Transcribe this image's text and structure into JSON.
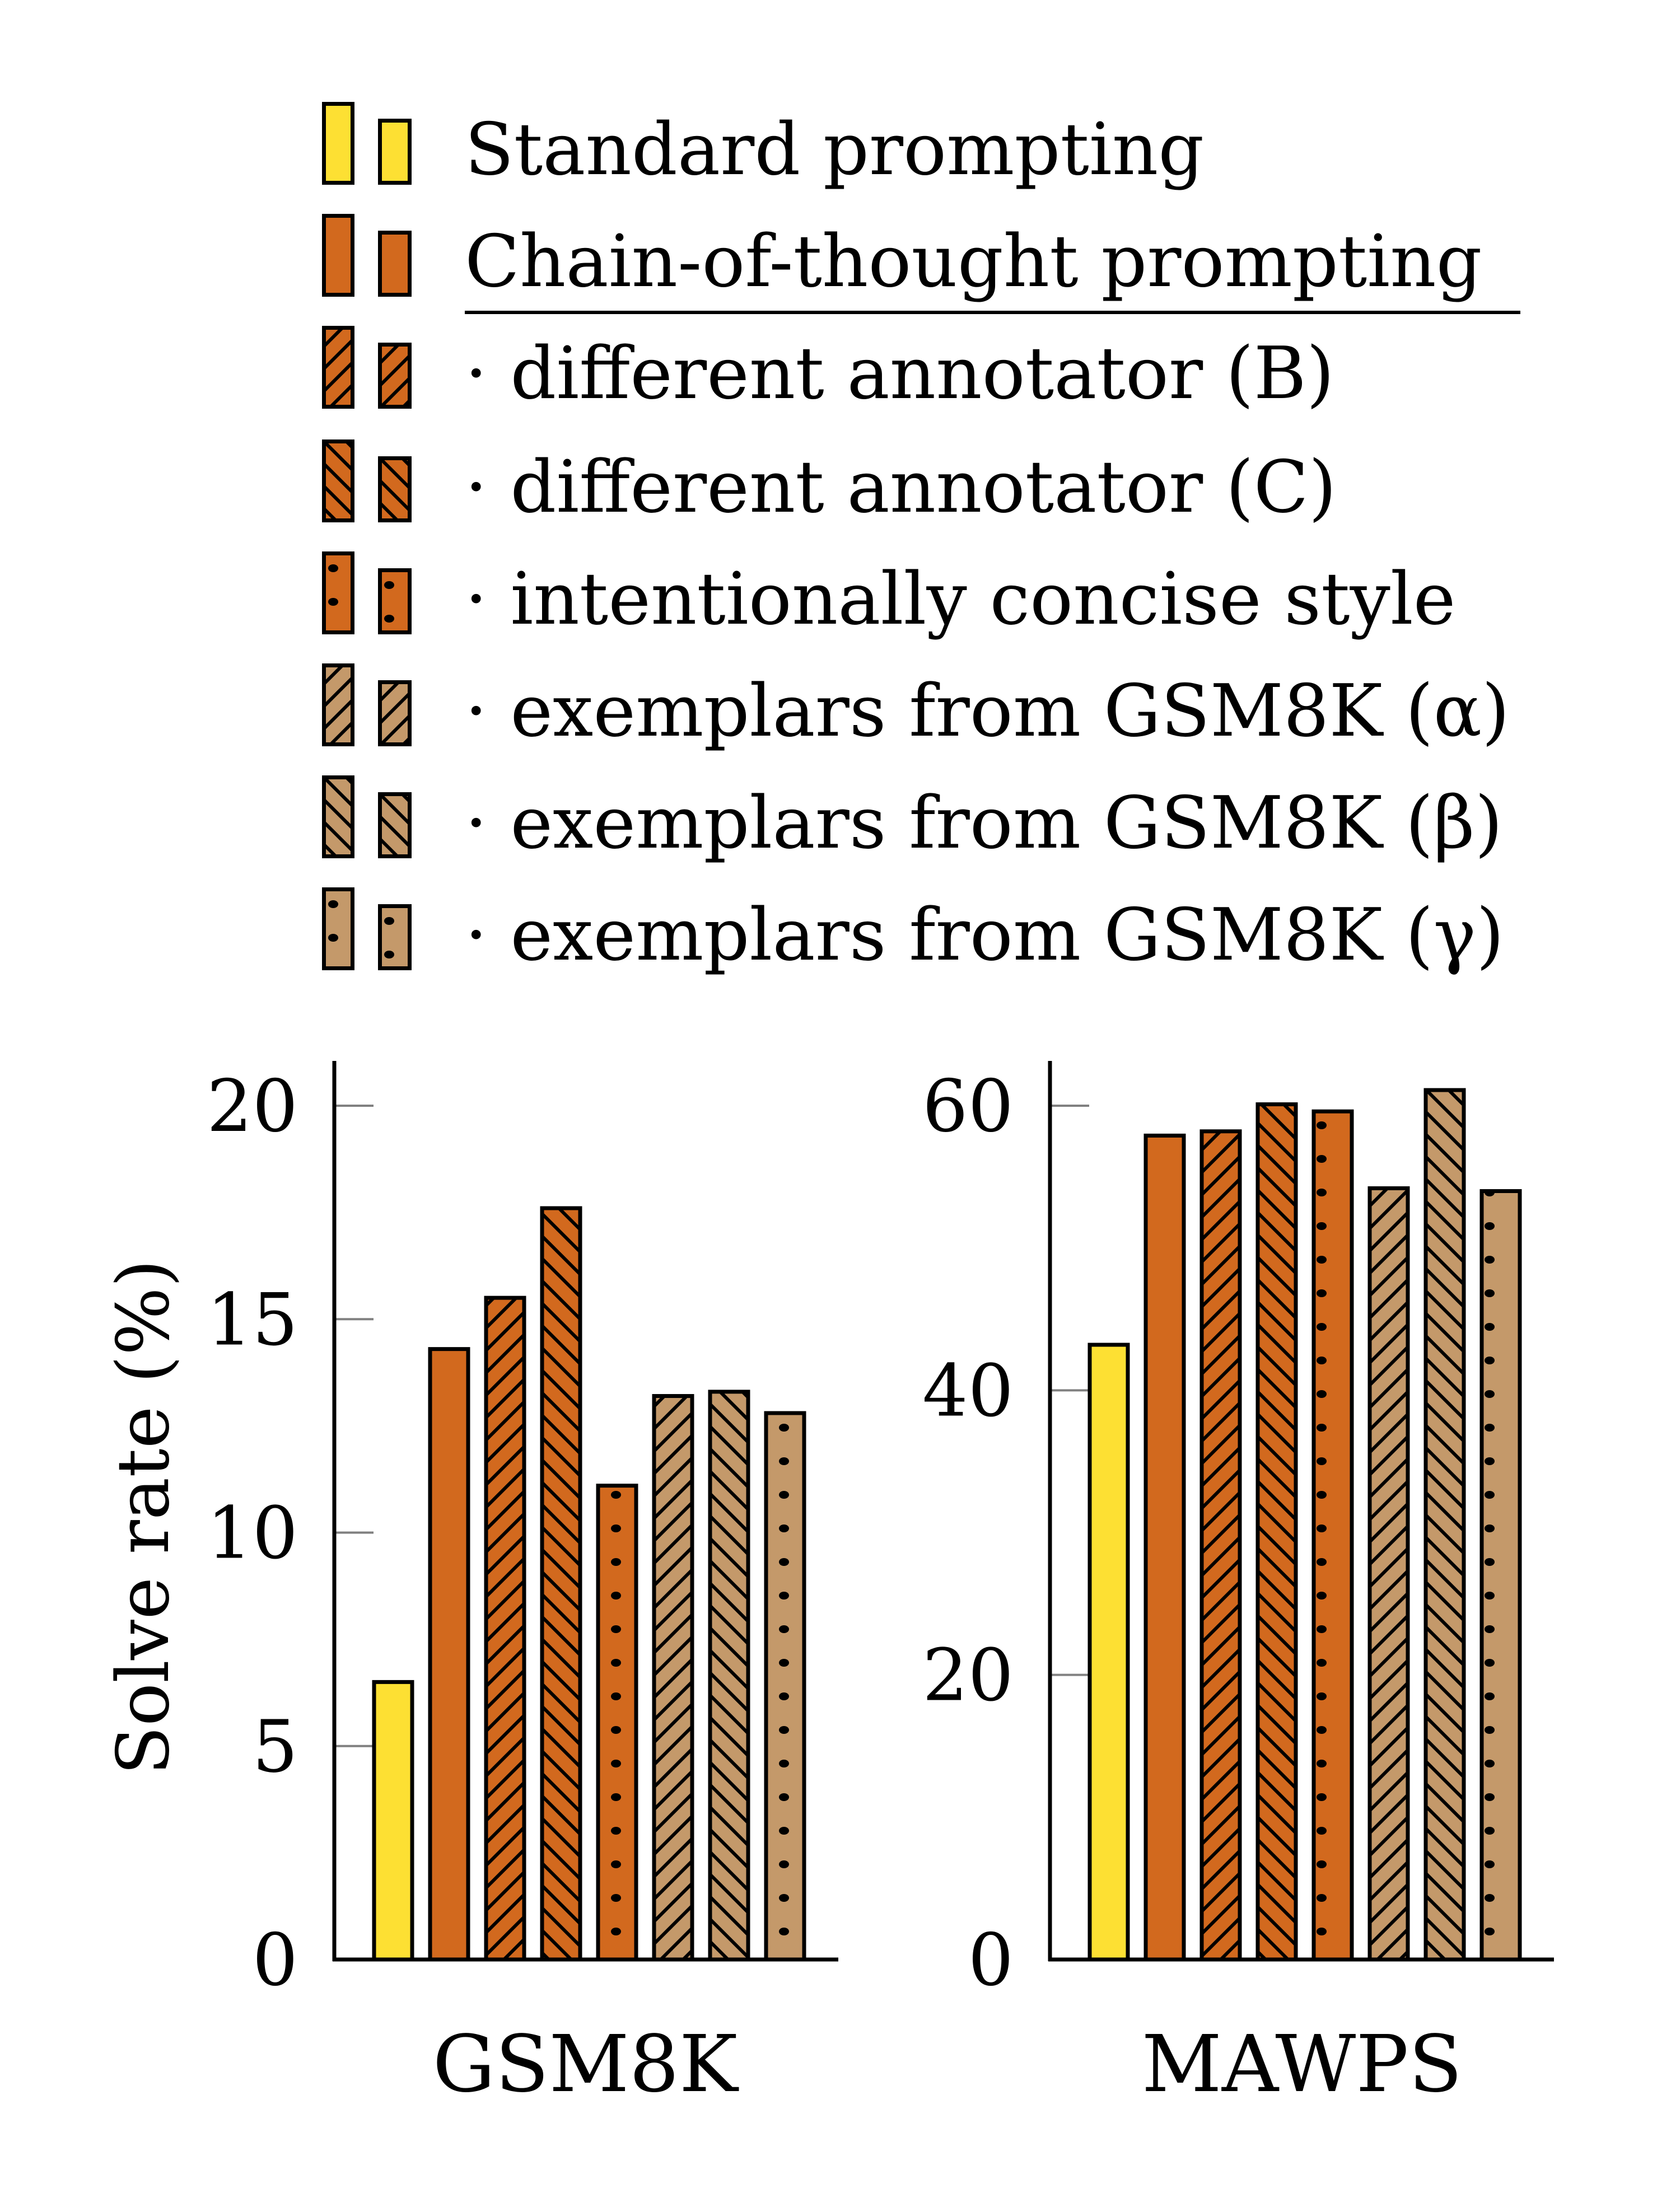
{
  "legend": [
    {
      "label": "Standard prompting",
      "fill": "#FDE033",
      "pattern": "none"
    },
    {
      "label": "Chain-of-thought prompting",
      "fill": "#D2691E",
      "pattern": "none"
    },
    {
      "label": "· different annotator (B)",
      "fill": "#D2691E",
      "pattern": "ne"
    },
    {
      "label": "· different annotator (C)",
      "fill": "#D2691E",
      "pattern": "nw"
    },
    {
      "label": "· intentionally concise style",
      "fill": "#D2691E",
      "pattern": "dots"
    },
    {
      "label": "· exemplars from GSM8K (α)",
      "fill": "#C4996A",
      "pattern": "ne"
    },
    {
      "label": "· exemplars from GSM8K (β)",
      "fill": "#C4996A",
      "pattern": "nw"
    },
    {
      "label": "· exemplars from GSM8K (γ)",
      "fill": "#C4996A",
      "pattern": "dots"
    }
  ],
  "colors": {
    "standard": "#FDE033",
    "cot": "#D2691E",
    "gsm8k_exemplars": "#C4996A",
    "axis": "#000000",
    "tick": "#808080"
  },
  "chart_data": [
    {
      "type": "bar",
      "title": "",
      "xlabel": "GSM8K",
      "ylabel": "Solve rate (%)",
      "ylim": [
        0,
        21
      ],
      "yticks": [
        0,
        5,
        10,
        15,
        20
      ],
      "categories": [
        "Standard prompting",
        "Chain-of-thought prompting",
        "· different annotator (B)",
        "· different annotator (C)",
        "· intentionally concise style",
        "· exemplars from GSM8K (α)",
        "· exemplars from GSM8K (β)",
        "· exemplars from GSM8K (γ)"
      ],
      "values": [
        6.5,
        14.3,
        15.5,
        17.6,
        11.1,
        13.2,
        13.3,
        12.8
      ],
      "grid": false,
      "legend_position": "top"
    },
    {
      "type": "bar",
      "title": "",
      "xlabel": "MAWPS",
      "ylabel": "",
      "ylim": [
        0,
        63
      ],
      "yticks": [
        0,
        20,
        40,
        60
      ],
      "categories": [
        "Standard prompting",
        "Chain-of-thought prompting",
        "· different annotator (B)",
        "· different annotator (C)",
        "· intentionally concise style",
        "· exemplars from GSM8K (α)",
        "· exemplars from GSM8K (β)",
        "· exemplars from GSM8K (γ)"
      ],
      "values": [
        43.2,
        57.9,
        58.2,
        60.1,
        59.6,
        54.2,
        61.1,
        54.0
      ],
      "grid": false,
      "legend_position": "top"
    }
  ],
  "axes": {
    "ylabel": "Solve rate (%)",
    "gsm8k": {
      "xlabel": "GSM8K",
      "ticks": [
        "0",
        "5",
        "10",
        "15",
        "20"
      ]
    },
    "mawps": {
      "xlabel": "MAWPS",
      "ticks": [
        "0",
        "20",
        "40",
        "60"
      ]
    }
  }
}
